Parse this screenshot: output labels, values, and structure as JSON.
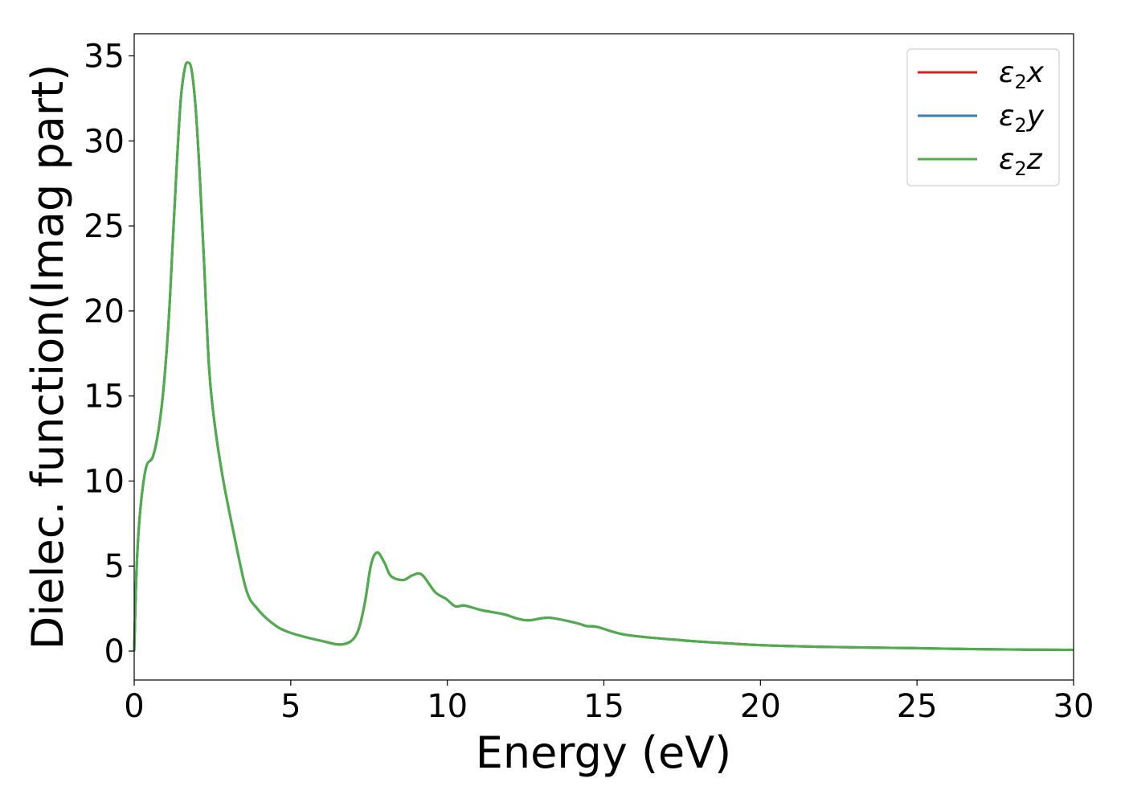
{
  "chart_data": {
    "type": "line",
    "title": "",
    "xlabel": "Energy (eV)",
    "ylabel": "Dielec. function(Imag part)",
    "xlim": [
      0,
      30
    ],
    "ylim": [
      -1.7,
      36.3
    ],
    "xticks": [
      0,
      5,
      10,
      15,
      20,
      25,
      30
    ],
    "yticks": [
      0,
      5,
      10,
      15,
      20,
      25,
      30,
      35
    ],
    "grid": false,
    "legend_position": "top-right",
    "x": [
      0,
      0.08,
      0.2,
      0.38,
      0.59,
      0.76,
      0.93,
      1.1,
      1.23,
      1.36,
      1.49,
      1.62,
      1.72,
      1.83,
      1.96,
      2.09,
      2.22,
      2.39,
      2.56,
      2.82,
      3.16,
      3.58,
      3.93,
      4.44,
      4.95,
      5.98,
      6.66,
      7.09,
      7.35,
      7.56,
      7.76,
      7.99,
      8.2,
      8.59,
      8.89,
      9.19,
      9.61,
      9.96,
      10.26,
      10.55,
      11.11,
      11.8,
      12.22,
      12.61,
      13.25,
      14.1,
      14.45,
      14.79,
      15.73,
      17.53,
      19.0,
      20.0,
      22.0,
      25.0,
      27.5,
      30.0
    ],
    "series": [
      {
        "name": "ε2x",
        "label_base": "ε",
        "label_sub": "2",
        "label_var": "x",
        "color": "#e41a1c",
        "values": [
          0,
          5.0,
          8.4,
          10.8,
          11.4,
          12.8,
          15.3,
          19.4,
          24.0,
          28.6,
          32.5,
          34.3,
          34.6,
          34.2,
          32.0,
          28.1,
          23.3,
          16.7,
          13.5,
          10.3,
          7.1,
          3.6,
          2.5,
          1.6,
          1.1,
          0.6,
          0.4,
          0.95,
          2.68,
          5.05,
          5.8,
          5.2,
          4.41,
          4.18,
          4.46,
          4.49,
          3.47,
          3.07,
          2.63,
          2.68,
          2.4,
          2.17,
          1.92,
          1.81,
          1.96,
          1.66,
          1.47,
          1.42,
          0.95,
          0.63,
          0.45,
          0.35,
          0.25,
          0.17,
          0.1,
          0.07
        ]
      },
      {
        "name": "ε2y",
        "label_base": "ε",
        "label_sub": "2",
        "label_var": "y",
        "color": "#377eb8",
        "values": [
          0,
          5.0,
          8.4,
          10.8,
          11.4,
          12.8,
          15.3,
          19.4,
          24.0,
          28.6,
          32.5,
          34.3,
          34.6,
          34.2,
          32.0,
          28.1,
          23.3,
          16.7,
          13.5,
          10.3,
          7.1,
          3.6,
          2.5,
          1.6,
          1.1,
          0.6,
          0.4,
          0.95,
          2.68,
          5.05,
          5.8,
          5.2,
          4.41,
          4.18,
          4.46,
          4.49,
          3.47,
          3.07,
          2.63,
          2.68,
          2.4,
          2.17,
          1.92,
          1.81,
          1.96,
          1.66,
          1.47,
          1.42,
          0.95,
          0.63,
          0.45,
          0.35,
          0.25,
          0.17,
          0.1,
          0.07
        ]
      },
      {
        "name": "ε2z",
        "label_base": "ε",
        "label_sub": "2",
        "label_var": "z",
        "color": "#4daf4a",
        "values": [
          0,
          5.0,
          8.4,
          10.8,
          11.4,
          12.8,
          15.3,
          19.4,
          24.0,
          28.6,
          32.5,
          34.3,
          34.6,
          34.2,
          32.0,
          28.1,
          23.3,
          16.7,
          13.5,
          10.3,
          7.1,
          3.6,
          2.5,
          1.6,
          1.1,
          0.6,
          0.4,
          0.95,
          2.68,
          5.05,
          5.8,
          5.2,
          4.41,
          4.18,
          4.46,
          4.49,
          3.47,
          3.07,
          2.63,
          2.68,
          2.4,
          2.17,
          1.92,
          1.81,
          1.96,
          1.66,
          1.47,
          1.42,
          0.95,
          0.63,
          0.45,
          0.35,
          0.25,
          0.17,
          0.1,
          0.07
        ]
      }
    ]
  }
}
